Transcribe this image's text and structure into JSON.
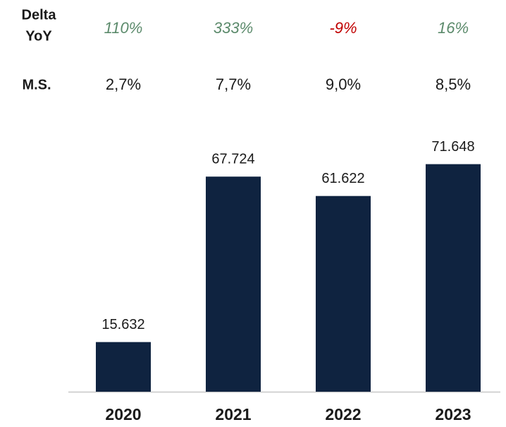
{
  "chart_data": {
    "type": "bar",
    "categories": [
      "2020",
      "2021",
      "2022",
      "2023"
    ],
    "values": [
      15632,
      67724,
      61622,
      71648
    ],
    "value_labels": [
      "15.632",
      "67.724",
      "61.622",
      "71.648"
    ],
    "color": "#0f2340",
    "ylim": [
      0,
      80000
    ],
    "delta_yoy": {
      "label": [
        "Delta",
        "YoY"
      ],
      "values": [
        "110%",
        "333%",
        "-9%",
        "16%"
      ],
      "colors": [
        "#5b8a6b",
        "#5b8a6b",
        "#c00000",
        "#5b8a6b"
      ]
    },
    "market_share": {
      "label": "M.S.",
      "values": [
        "2,7%",
        "7,7%",
        "9,0%",
        "8,5%"
      ]
    }
  }
}
